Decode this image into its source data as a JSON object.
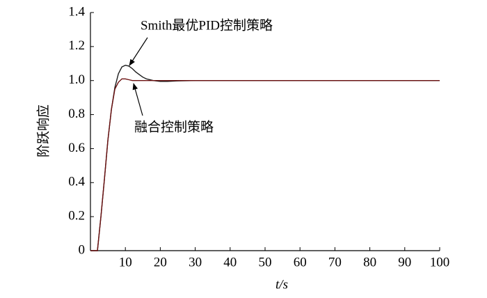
{
  "chart_data": {
    "type": "line",
    "x_label": "t/s",
    "y_label": "阶跃响应",
    "x": [
      0,
      1,
      2,
      3,
      4,
      5,
      6,
      7,
      8,
      9,
      10,
      11,
      12,
      13,
      14,
      15,
      16,
      18,
      20,
      22,
      25,
      30,
      40,
      50,
      60,
      70,
      80,
      90,
      100
    ],
    "series": [
      {
        "name": "Smith最优PID控制策略",
        "color": "#1a1a1a",
        "values": [
          0,
          0,
          0,
          0.2,
          0.42,
          0.65,
          0.83,
          0.96,
          1.04,
          1.08,
          1.09,
          1.085,
          1.07,
          1.05,
          1.035,
          1.02,
          1.01,
          1.0,
          0.995,
          0.995,
          0.998,
          1,
          1,
          1,
          1,
          1,
          1,
          1,
          1
        ]
      },
      {
        "name": "融合控制策略",
        "color": "#6b1010",
        "values": [
          0,
          0,
          0,
          0.2,
          0.42,
          0.65,
          0.83,
          0.95,
          0.99,
          1.01,
          1.01,
          1.005,
          1.0,
          1.0,
          1.0,
          1.0,
          1.0,
          1.0,
          1.0,
          1.0,
          1.0,
          1.0,
          1.0,
          1.0,
          1.0,
          1.0,
          1.0,
          1.0,
          1.0
        ]
      }
    ],
    "xlim": [
      0,
      100
    ],
    "xticks": [
      10,
      20,
      30,
      40,
      50,
      60,
      70,
      80,
      90,
      100
    ],
    "ylim": [
      0,
      1.4
    ],
    "yticks": [
      0,
      0.2,
      0.4,
      0.6,
      0.8,
      {
        "value": 1,
        "label": "1.0"
      },
      1.2,
      1.4
    ],
    "grid": false
  }
}
